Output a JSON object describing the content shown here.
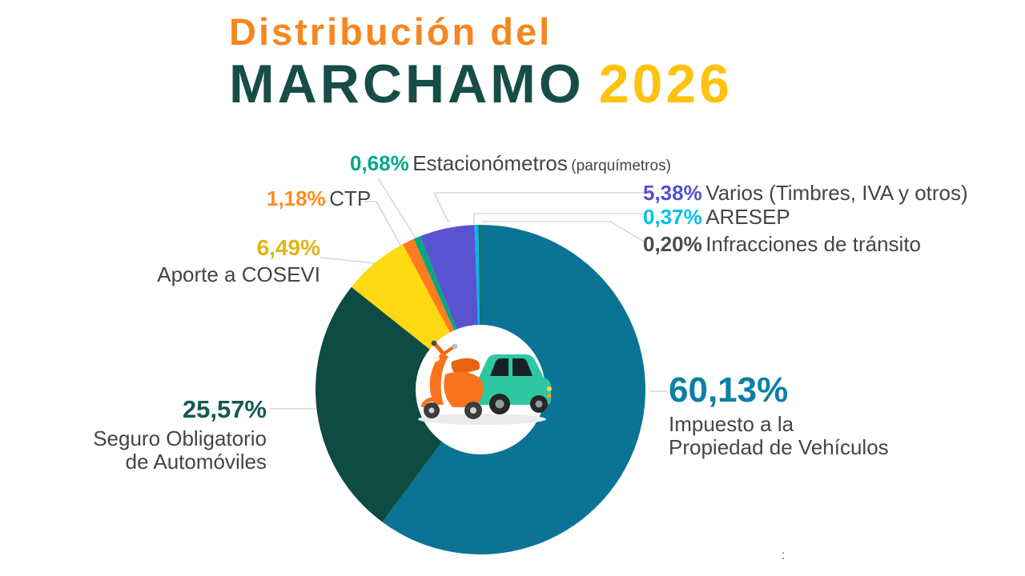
{
  "title": {
    "line1": "Distribución del",
    "line1_color": "#f6871f",
    "brand": "MARCHAMO",
    "brand_color": "#174d48",
    "year": "2026",
    "year_color": "#ffc20d"
  },
  "chart_data": {
    "type": "pie",
    "style": "donut",
    "title": "Distribución del MARCHAMO 2026",
    "unit": "%",
    "start_angle": "12-o-clock, clockwise",
    "slices": [
      {
        "id": "ipv",
        "label": "Impuesto a la Propiedad de Vehículos",
        "display": "60,13%",
        "value": 60.13,
        "color": "#0b7495"
      },
      {
        "id": "soa",
        "label": "Seguro Obligatorio de Automóviles",
        "display": "25,57%",
        "value": 25.57,
        "color": "#0e4b43"
      },
      {
        "id": "cosevi",
        "label": "Aporte a COSEVI",
        "display": "6,49%",
        "value": 6.49,
        "color": "#ffd911"
      },
      {
        "id": "ctp",
        "label": "CTP",
        "display": "1,18%",
        "value": 1.18,
        "color": "#ff7c1f"
      },
      {
        "id": "est",
        "label": "Estacionómetros (parquímetros)",
        "display": "0,68%",
        "value": 0.68,
        "color": "#00a87e"
      },
      {
        "id": "varios",
        "label": "Varios (Timbres, IVA y otros)",
        "display": "5,38%",
        "value": 5.38,
        "color": "#5a53d0"
      },
      {
        "id": "aresep",
        "label": "ARESEP",
        "display": "0,37%",
        "value": 0.37,
        "color": "#00b9ee"
      },
      {
        "id": "infracciones",
        "label": "Infracciones de tránsito",
        "display": "0,20%",
        "value": 0.2,
        "color": "#1d6e62"
      }
    ],
    "center_icons": [
      "scooter",
      "car"
    ]
  },
  "callouts": {
    "est": {
      "pct": "0,68%",
      "pct_color": "#00a888",
      "name": "Estacionómetros",
      "paren": "(parquímetros)"
    },
    "ctp": {
      "pct": "1,18%",
      "pct_color": "#ff8c1e",
      "name": "CTP"
    },
    "cosevi": {
      "pct": "6,49%",
      "pct_color": "#e0b511",
      "name": "Aporte a COSEVI"
    },
    "soa": {
      "pct": "25,57%",
      "pct_color": "#135a52",
      "name_line1": "Seguro Obligatorio",
      "name_line2": "de Automóviles"
    },
    "varios": {
      "pct": "5,38%",
      "pct_color": "#554fd0",
      "name": "Varios (Timbres, IVA y otros)"
    },
    "aresep": {
      "pct": "0,37%",
      "pct_color": "#00c0f0",
      "name": "ARESEP"
    },
    "infracciones": {
      "pct": "0,20%",
      "pct_color": "#4b4b4b",
      "name": "Infracciones de tránsito"
    },
    "ipv": {
      "pct": "60,13%",
      "pct_color": "#0d7fa5",
      "name_line1": "Impuesto a la",
      "name_line2": "Propiedad de Vehículos"
    }
  },
  "footer": {
    "mark": ":"
  }
}
